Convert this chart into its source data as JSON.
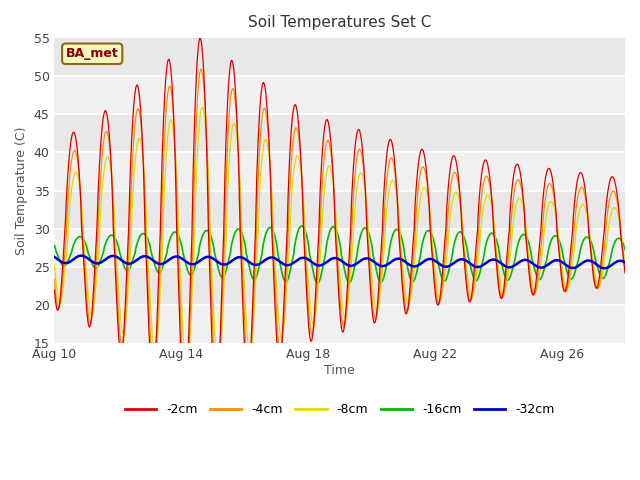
{
  "title": "Soil Temperatures Set C",
  "xlabel": "Time",
  "ylabel": "Soil Temperature (C)",
  "ylim": [
    15,
    55
  ],
  "annotation": "BA_met",
  "legend_labels": [
    "-2cm",
    "-4cm",
    "-8cm",
    "-16cm",
    "-32cm"
  ],
  "legend_colors": [
    "#dd0000",
    "#ff8c00",
    "#dddd00",
    "#00bb00",
    "#0000cc"
  ],
  "xtick_labels": [
    "Aug 10",
    "Aug 14",
    "Aug 18",
    "Aug 22",
    "Aug 26"
  ],
  "xtick_positions": [
    0,
    4,
    8,
    12,
    16
  ],
  "plot_bg_bands": [
    [
      55,
      50,
      "#e8e8e8"
    ],
    [
      50,
      45,
      "#f0f0f0"
    ],
    [
      45,
      40,
      "#e8e8e8"
    ],
    [
      40,
      35,
      "#f0f0f0"
    ],
    [
      35,
      30,
      "#e8e8e8"
    ],
    [
      30,
      25,
      "#f0f0f0"
    ],
    [
      25,
      20,
      "#e8e8e8"
    ],
    [
      20,
      15,
      "#f0f0f0"
    ]
  ],
  "grid_color": "#cccccc"
}
